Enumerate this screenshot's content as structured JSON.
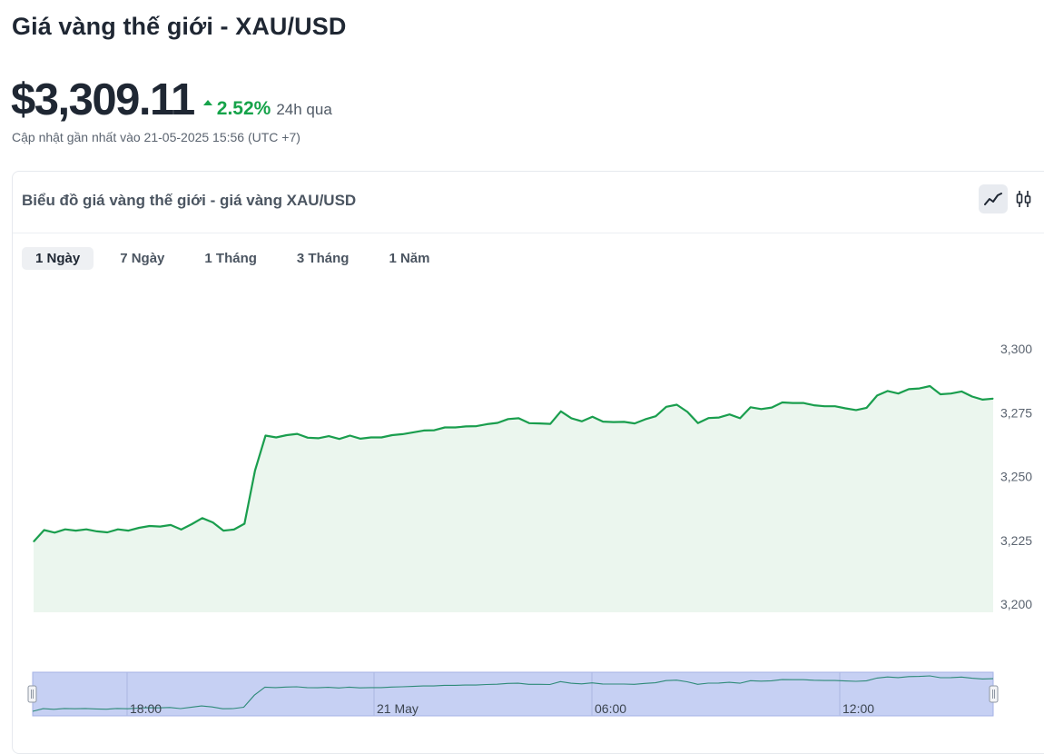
{
  "page": {
    "title": "Giá vàng thế giới - XAU/USD",
    "price": "$3,309.11",
    "change_pct": "2.52%",
    "change_period": "24h qua",
    "change_direction": "up",
    "updated": "Cập nhật gần nhất vào 21-05-2025 15:56 (UTC +7)"
  },
  "card": {
    "title": "Biểu đồ giá vàng thế giới - giá vàng XAU/USD",
    "chart_types": [
      {
        "name": "line-chart-icon",
        "active": true
      },
      {
        "name": "candlestick-icon",
        "active": false
      }
    ],
    "ranges": [
      "1 Ngày",
      "7 Ngày",
      "1 Tháng",
      "3 Tháng",
      "1 Năm"
    ],
    "active_range": "1 Ngày"
  },
  "colors": {
    "line": "#1a9e4e",
    "area": "#ebf6ee",
    "up": "#16a34a",
    "navigator_fill": "#c6d0f3",
    "navigator_border": "#a4b2e6"
  },
  "chart_data": {
    "type": "area",
    "ylim": [
      3200,
      3310
    ],
    "y_ticks": [
      3200,
      3225,
      3250,
      3275,
      3300
    ],
    "y_tick_labels": [
      "3,200",
      "3,225",
      "3,250",
      "3,275",
      "3,300"
    ],
    "navigator_labels": [
      "18:00",
      "21 May",
      "06:00",
      "12:00"
    ],
    "series": [
      {
        "values": [
          3224.5,
          3229.0,
          3228.0,
          3229.3,
          3228.8,
          3229.3,
          3228.5,
          3228.1,
          3229.3,
          3228.8,
          3229.9,
          3230.6,
          3230.4,
          3231.0,
          3229.2,
          3231.3,
          3233.7,
          3232.0,
          3228.8,
          3229.2,
          3231.5,
          3252.3,
          3266.0,
          3265.3,
          3266.2,
          3266.7,
          3265.2,
          3265.0,
          3265.8,
          3264.7,
          3266.0,
          3264.8,
          3265.3,
          3265.3,
          3266.2,
          3266.6,
          3267.3,
          3268.0,
          3268.1,
          3269.2,
          3269.2,
          3269.6,
          3269.7,
          3270.5,
          3271.0,
          3272.5,
          3272.8,
          3270.9,
          3270.8,
          3270.6,
          3275.5,
          3272.8,
          3271.6,
          3273.4,
          3271.5,
          3271.3,
          3271.4,
          3270.8,
          3272.4,
          3273.6,
          3277.3,
          3278.1,
          3275.3,
          3270.9,
          3272.9,
          3273.1,
          3274.3,
          3272.8,
          3277.1,
          3276.4,
          3277.0,
          3279.0,
          3278.8,
          3278.8,
          3277.9,
          3277.5,
          3277.5,
          3276.7,
          3276.0,
          3276.9,
          3281.7,
          3283.5,
          3282.5,
          3284.2,
          3284.5,
          3285.4,
          3282.2,
          3282.5,
          3283.3,
          3281.3,
          3280.1,
          3280.5
        ]
      }
    ]
  }
}
